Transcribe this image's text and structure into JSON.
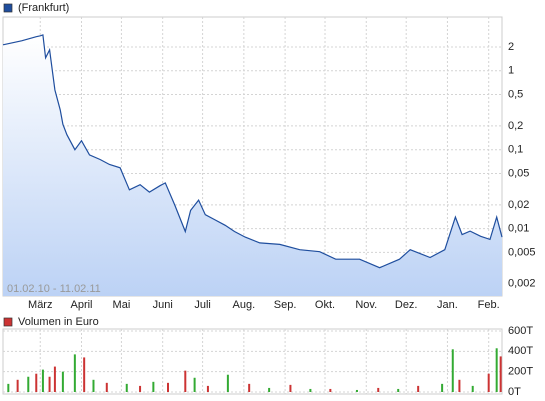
{
  "chart_data": [
    {
      "type": "line",
      "range_label": "01.02.10 - 11.02.11",
      "log_scale": true,
      "grid": true,
      "legend": "top-left",
      "xlim": [
        "2010-02-01",
        "2011-02-11"
      ],
      "xticks": [
        {
          "value": "2010-03-01",
          "label": "März"
        },
        {
          "value": "2010-04-01",
          "label": "April"
        },
        {
          "value": "2010-05-01",
          "label": "Mai"
        },
        {
          "value": "2010-06-01",
          "label": "Juni"
        },
        {
          "value": "2010-07-01",
          "label": "Juli"
        },
        {
          "value": "2010-08-01",
          "label": "Aug."
        },
        {
          "value": "2010-09-01",
          "label": "Sep."
        },
        {
          "value": "2010-10-01",
          "label": "Okt."
        },
        {
          "value": "2010-11-01",
          "label": "Nov."
        },
        {
          "value": "2010-12-01",
          "label": "Dez."
        },
        {
          "value": "2011-01-01",
          "label": "Jan."
        },
        {
          "value": "2011-02-01",
          "label": "Feb."
        }
      ],
      "ylim": [
        0.0014,
        4.8
      ],
      "yticks": [
        2,
        1,
        {
          "value": 0.5,
          "label": "0,5"
        },
        {
          "value": 0.2,
          "label": "0,2"
        },
        {
          "value": 0.1,
          "label": "0,1"
        },
        {
          "value": 0.05,
          "label": "0,05"
        },
        {
          "value": 0.02,
          "label": "0,02"
        },
        {
          "value": 0.01,
          "label": "0,01"
        },
        {
          "value": 0.005,
          "label": "0,005"
        },
        {
          "value": 0.002,
          "label": "0,002"
        }
      ],
      "x": [
        "2010-02-01",
        "2010-02-15",
        "2010-02-26",
        "2010-03-01",
        "2010-03-03",
        "2010-03-05",
        "2010-03-08",
        "2010-03-12",
        "2010-03-16",
        "2010-03-18",
        "2010-03-21",
        "2010-03-27",
        "2010-04-01",
        "2010-04-07",
        "2010-04-15",
        "2010-04-22",
        "2010-04-30",
        "2010-05-07",
        "2010-05-15",
        "2010-05-22",
        "2010-05-30",
        "2010-06-03",
        "2010-06-10",
        "2010-06-18",
        "2010-06-22",
        "2010-06-28",
        "2010-07-03",
        "2010-07-10",
        "2010-07-18",
        "2010-07-25",
        "2010-08-02",
        "2010-08-13",
        "2010-08-28",
        "2010-09-12",
        "2010-09-27",
        "2010-10-09",
        "2010-10-27",
        "2010-11-11",
        "2010-11-26",
        "2010-12-04",
        "2010-12-19",
        "2010-12-30",
        "2011-01-07",
        "2011-01-12",
        "2011-01-18",
        "2011-01-26",
        "2011-02-02",
        "2011-02-07",
        "2011-02-11"
      ],
      "series": [
        {
          "name": "(Frankfurt)",
          "color": "#1f4e9e",
          "values": [
            2.13,
            2.4,
            2.7,
            2.77,
            2.85,
            1.46,
            1.84,
            0.57,
            0.32,
            0.21,
            0.155,
            0.1,
            0.13,
            0.086,
            0.075,
            0.065,
            0.059,
            0.031,
            0.036,
            0.029,
            0.035,
            0.038,
            0.02,
            0.0092,
            0.017,
            0.023,
            0.015,
            0.013,
            0.011,
            0.0092,
            0.0078,
            0.0066,
            0.0063,
            0.0054,
            0.0051,
            0.0041,
            0.0041,
            0.0032,
            0.0041,
            0.0054,
            0.0043,
            0.0054,
            0.014,
            0.0084,
            0.0093,
            0.008,
            0.0073,
            0.014,
            0.0078
          ]
        }
      ]
    },
    {
      "type": "bar",
      "grid": true,
      "legend": "top-left",
      "xlim": [
        "2010-02-01",
        "2011-02-11"
      ],
      "ylim": [
        0,
        600000
      ],
      "yticks": [
        {
          "value": 600000,
          "label": "600T"
        },
        {
          "value": 400000,
          "label": "400T"
        },
        {
          "value": 200000,
          "label": "200T"
        },
        {
          "value": 0,
          "label": "0T"
        }
      ],
      "x": [
        "2010-02-05",
        "2010-02-12",
        "2010-02-20",
        "2010-02-26",
        "2010-03-03",
        "2010-03-08",
        "2010-03-12",
        "2010-03-18",
        "2010-03-27",
        "2010-04-03",
        "2010-04-10",
        "2010-04-20",
        "2010-05-05",
        "2010-05-15",
        "2010-05-25",
        "2010-06-05",
        "2010-06-18",
        "2010-06-25",
        "2010-07-05",
        "2010-07-20",
        "2010-08-05",
        "2010-08-20",
        "2010-09-05",
        "2010-09-20",
        "2010-10-05",
        "2010-10-25",
        "2010-11-10",
        "2010-11-25",
        "2010-12-10",
        "2010-12-28",
        "2011-01-05",
        "2011-01-10",
        "2011-01-20",
        "2011-02-01",
        "2011-02-07",
        "2011-02-10"
      ],
      "series": [
        {
          "name": "Volumen in Euro",
          "color": "#cc3333",
          "values": [
            80000,
            120000,
            150000,
            180000,
            220000,
            150000,
            250000,
            200000,
            370000,
            340000,
            120000,
            90000,
            80000,
            60000,
            100000,
            90000,
            210000,
            140000,
            60000,
            170000,
            80000,
            40000,
            70000,
            30000,
            30000,
            20000,
            40000,
            30000,
            60000,
            80000,
            420000,
            120000,
            60000,
            180000,
            430000,
            350000
          ],
          "colors": [
            "#33aa33",
            "#cc3333",
            "#33aa33",
            "#cc3333",
            "#33aa33",
            "#cc3333",
            "#cc3333",
            "#33aa33",
            "#33aa33",
            "#cc3333",
            "#33aa33",
            "#cc3333",
            "#33aa33",
            "#cc3333",
            "#33aa33",
            "#cc3333",
            "#cc3333",
            "#33aa33",
            "#cc3333",
            "#33aa33",
            "#cc3333",
            "#33aa33",
            "#cc3333",
            "#33aa33",
            "#cc3333",
            "#33aa33",
            "#cc3333",
            "#33aa33",
            "#cc3333",
            "#33aa33",
            "#33aa33",
            "#cc3333",
            "#33aa33",
            "#cc3333",
            "#33aa33",
            "#cc3333"
          ]
        }
      ]
    }
  ]
}
